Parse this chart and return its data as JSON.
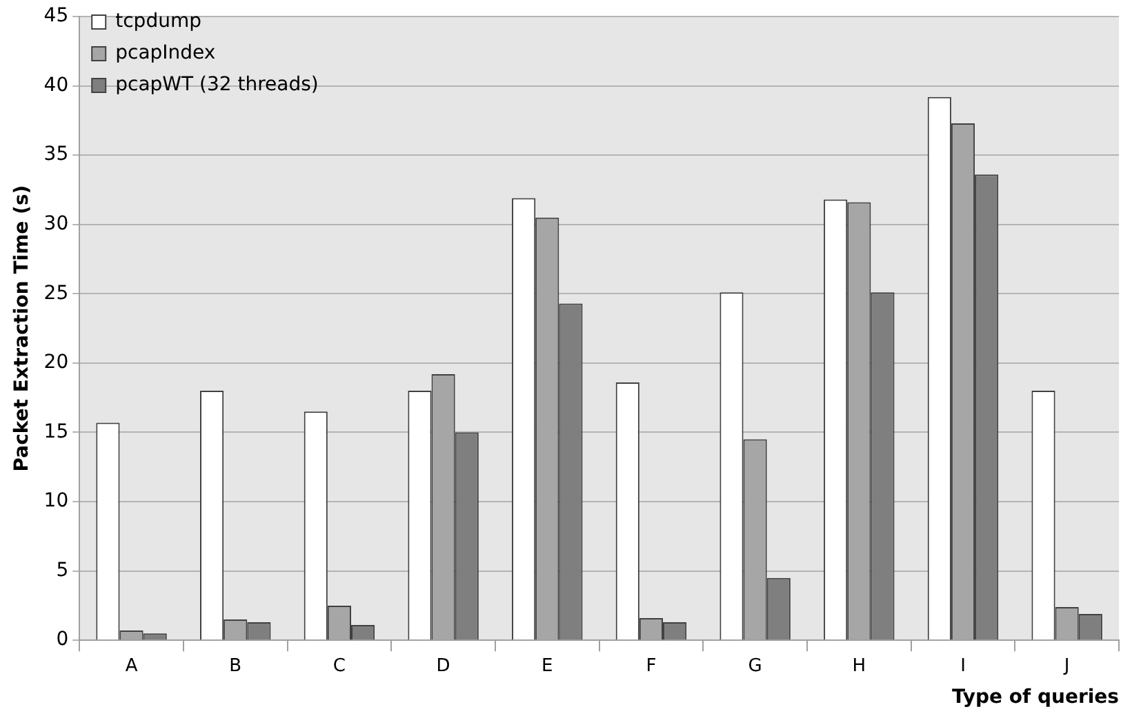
{
  "chart_data": {
    "type": "bar",
    "xlabel": "Type of queries",
    "ylabel": "Packet Extraction Time (s)",
    "categories": [
      "A",
      "B",
      "C",
      "D",
      "E",
      "F",
      "G",
      "H",
      "I",
      "J"
    ],
    "series": [
      {
        "name": "tcpdump",
        "color": "#ffffff",
        "values": [
          15.7,
          18.0,
          16.5,
          18.0,
          31.9,
          18.6,
          25.1,
          31.8,
          39.2,
          18.0
        ]
      },
      {
        "name": "pcapIndex",
        "color": "#a6a6a6",
        "values": [
          0.7,
          1.5,
          2.5,
          19.2,
          30.5,
          1.6,
          14.5,
          31.6,
          37.3,
          2.4
        ]
      },
      {
        "name": "pcapWT (32 threads)",
        "color": "#7f7f7f",
        "values": [
          0.5,
          1.3,
          1.1,
          15.0,
          24.3,
          1.3,
          4.5,
          25.1,
          33.6,
          1.9
        ]
      }
    ],
    "ylim": [
      0,
      45
    ],
    "yticks": [
      0,
      5,
      10,
      15,
      20,
      25,
      30,
      35,
      40,
      45
    ],
    "grid": "y",
    "legend": "top left"
  }
}
